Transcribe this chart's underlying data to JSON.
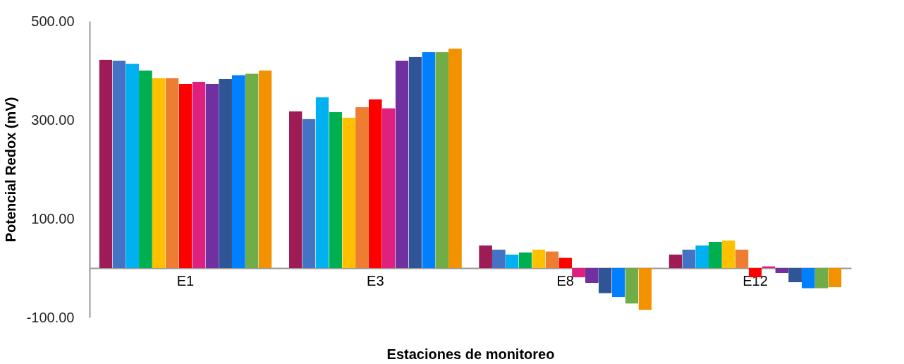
{
  "chart_data": {
    "type": "bar",
    "xlabel": "Estaciones de monitoreo",
    "ylabel": "Potencial Redox (mV)",
    "categories": [
      "E1",
      "E3",
      "E8",
      "E12"
    ],
    "ylim": [
      -100,
      500
    ],
    "yticks": [
      {
        "value": -100,
        "label": "-100.00"
      },
      {
        "value": 100,
        "label": "100.00"
      },
      {
        "value": 300,
        "label": "300.00"
      },
      {
        "value": 500,
        "label": "500.00"
      }
    ],
    "grid": false,
    "series": [
      {
        "color": "#9e1b55",
        "values": [
          422,
          318,
          46,
          28
        ]
      },
      {
        "color": "#4472c4",
        "values": [
          420,
          302,
          38,
          38
        ]
      },
      {
        "color": "#00b0f0",
        "values": [
          414,
          346,
          28,
          46
        ]
      },
      {
        "color": "#00b050",
        "values": [
          400,
          316,
          32,
          53
        ]
      },
      {
        "color": "#ffc000",
        "values": [
          385,
          305,
          38,
          56
        ]
      },
      {
        "color": "#ed7d31",
        "values": [
          385,
          326,
          34,
          38
        ]
      },
      {
        "color": "#ff0000",
        "values": [
          373,
          342,
          21,
          -19
        ]
      },
      {
        "color": "#e0207f",
        "values": [
          377,
          324,
          -19,
          4
        ]
      },
      {
        "color": "#7030a0",
        "values": [
          373,
          420,
          -30,
          -10
        ]
      },
      {
        "color": "#2f5597",
        "values": [
          383,
          428,
          -51,
          -29
        ]
      },
      {
        "color": "#0080ff",
        "values": [
          391,
          437,
          -59,
          -41
        ]
      },
      {
        "color": "#70ad47",
        "values": [
          394,
          437,
          -72,
          -41
        ]
      },
      {
        "color": "#f39200",
        "values": [
          400,
          445,
          -85,
          -39
        ]
      }
    ]
  }
}
